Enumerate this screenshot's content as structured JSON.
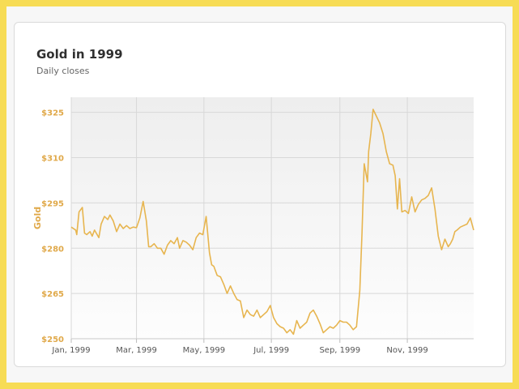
{
  "title": "Gold in 1999",
  "subtitle": "Daily closes",
  "colors": {
    "line": "#e7b54f",
    "axis_label": "#e0a94a",
    "plot_bg_top": "#eeeeee",
    "plot_bg_bottom": "#fdfdfd",
    "grid": "#d8d8d8"
  },
  "chart_data": {
    "type": "line",
    "title": "Gold in 1999",
    "subtitle": "Daily closes",
    "ylabel": "Gold",
    "xlabel": "",
    "ylim": [
      250,
      330
    ],
    "yticks": [
      250,
      265,
      280,
      295,
      310,
      325
    ],
    "ytick_labels": [
      "$250",
      "$265",
      "$280",
      "$295",
      "$310",
      "$325"
    ],
    "xlim": [
      "1999-01-01",
      "1999-12-31"
    ],
    "xticks": [
      "1999-01-01",
      "1999-03-01",
      "1999-05-01",
      "1999-07-01",
      "1999-09-01",
      "1999-11-01"
    ],
    "xtick_labels": [
      "Jan, 1999",
      "Mar, 1999",
      "May, 1999",
      "Jul, 1999",
      "Sep, 1999",
      "Nov, 1999"
    ],
    "grid": true,
    "series": [
      {
        "x": [
          "1999-01-01",
          "1999-01-05",
          "1999-01-06",
          "1999-01-08",
          "1999-01-11",
          "1999-01-13",
          "1999-01-15",
          "1999-01-18",
          "1999-01-20",
          "1999-01-22",
          "1999-01-26",
          "1999-01-28",
          "1999-01-31",
          "1999-02-03",
          "1999-02-05",
          "1999-02-08",
          "1999-02-11",
          "1999-02-14",
          "1999-02-17",
          "1999-02-20",
          "1999-02-23",
          "1999-02-26",
          "1999-03-01",
          "1999-03-04",
          "1999-03-07",
          "1999-03-10",
          "1999-03-12",
          "1999-03-14",
          "1999-03-17",
          "1999-03-20",
          "1999-03-23",
          "1999-03-26",
          "1999-03-29",
          "1999-04-01",
          "1999-04-04",
          "1999-04-07",
          "1999-04-09",
          "1999-04-12",
          "1999-04-15",
          "1999-04-18",
          "1999-04-21",
          "1999-04-24",
          "1999-04-27",
          "1999-04-30",
          "1999-05-03",
          "1999-05-06",
          "1999-05-08",
          "1999-05-10",
          "1999-05-13",
          "1999-05-16",
          "1999-05-19",
          "1999-05-22",
          "1999-05-25",
          "1999-05-28",
          "1999-05-31",
          "1999-06-03",
          "1999-06-06",
          "1999-06-09",
          "1999-06-12",
          "1999-06-15",
          "1999-06-18",
          "1999-06-21",
          "1999-06-24",
          "1999-06-27",
          "1999-06-30",
          "1999-07-03",
          "1999-07-06",
          "1999-07-09",
          "1999-07-12",
          "1999-07-15",
          "1999-07-18",
          "1999-07-21",
          "1999-07-24",
          "1999-07-27",
          "1999-07-30",
          "1999-08-02",
          "1999-08-05",
          "1999-08-08",
          "1999-08-11",
          "1999-08-14",
          "1999-08-17",
          "1999-08-20",
          "1999-08-23",
          "1999-08-26",
          "1999-08-29",
          "1999-09-01",
          "1999-09-04",
          "1999-09-07",
          "1999-09-10",
          "1999-09-13",
          "1999-09-16",
          "1999-09-19",
          "1999-09-21",
          "1999-09-23",
          "1999-09-26",
          "1999-09-27",
          "1999-09-29",
          "1999-10-01",
          "1999-10-03",
          "1999-10-05",
          "1999-10-07",
          "1999-10-10",
          "1999-10-13",
          "1999-10-16",
          "1999-10-19",
          "1999-10-21",
          "1999-10-23",
          "1999-10-25",
          "1999-10-27",
          "1999-10-30",
          "1999-11-02",
          "1999-11-05",
          "1999-11-08",
          "1999-11-11",
          "1999-11-14",
          "1999-11-17",
          "1999-11-20",
          "1999-11-23",
          "1999-11-26",
          "1999-11-29",
          "1999-12-02",
          "1999-12-05",
          "1999-12-08",
          "1999-12-10",
          "1999-12-12",
          "1999-12-14",
          "1999-12-16",
          "1999-12-19",
          "1999-12-22",
          "1999-12-25",
          "1999-12-28",
          "1999-12-31"
        ],
        "y": [
          287.0,
          286.0,
          284.5,
          292.0,
          293.5,
          285.0,
          284.5,
          285.5,
          284.0,
          286.0,
          283.5,
          288.0,
          290.5,
          289.5,
          291.0,
          289.0,
          285.5,
          288.0,
          286.5,
          287.5,
          286.5,
          287.0,
          286.8,
          290.0,
          295.5,
          289.0,
          280.5,
          280.5,
          281.5,
          280.0,
          280.0,
          278.0,
          281.0,
          282.5,
          281.5,
          283.5,
          280.0,
          282.5,
          282.0,
          281.0,
          279.5,
          283.5,
          285.0,
          284.5,
          290.5,
          278.5,
          274.5,
          274.0,
          271.0,
          270.5,
          268.0,
          265.0,
          267.5,
          265.0,
          263.0,
          262.5,
          257.0,
          259.5,
          258.0,
          257.5,
          259.5,
          257.0,
          258.0,
          259.0,
          261.0,
          257.0,
          255.0,
          254.0,
          253.5,
          252.0,
          253.0,
          251.5,
          256.0,
          253.5,
          254.5,
          255.5,
          258.5,
          259.5,
          257.5,
          255.0,
          252.0,
          253.0,
          254.0,
          253.5,
          254.5,
          256.0,
          255.5,
          255.5,
          254.5,
          253.0,
          254.0,
          266.0,
          285.0,
          308.0,
          302.0,
          312.0,
          318.0,
          326.0,
          324.5,
          323.0,
          321.5,
          318.0,
          312.0,
          308.0,
          307.5,
          304.0,
          293.0,
          303.0,
          292.0,
          292.5,
          291.5,
          297.0,
          292.0,
          294.5,
          296.0,
          296.5,
          297.5,
          300.0,
          293.0,
          284.0,
          279.5,
          283.0,
          280.5,
          281.5,
          283.0,
          285.5,
          286.0,
          287.0,
          287.5,
          288.0,
          290.0,
          286.0
        ]
      }
    ]
  }
}
